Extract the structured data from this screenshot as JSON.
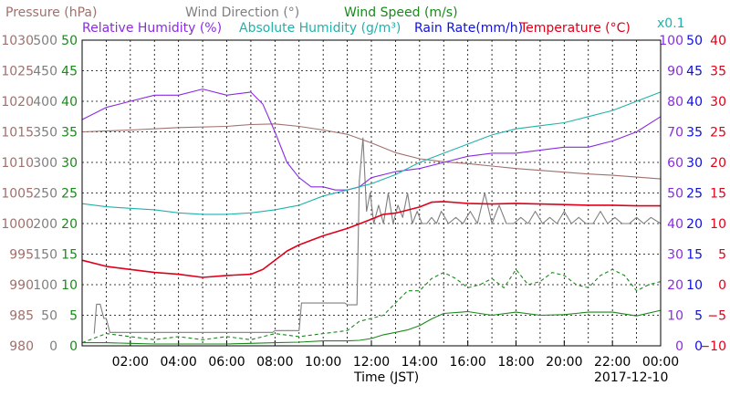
{
  "chart_data": {
    "type": "line",
    "date_label": "2017-12-10",
    "xlabel": "Time (JST)",
    "x_ticks": [
      "02:00",
      "04:00",
      "06:00",
      "08:00",
      "10:00",
      "12:00",
      "14:00",
      "16:00",
      "18:00",
      "20:00",
      "22:00",
      "00:00"
    ],
    "xlim_hours": [
      0,
      24
    ],
    "header_labels": {
      "pressure": "Pressure (hPa)",
      "wind_direction": "Wind Direction (°)",
      "wind_speed": "Wind Speed (m/s)",
      "relative_humidity": "Relative Humidity (%)",
      "absolute_humidity": "Absolute Humidity (g/m³)",
      "absolute_humidity_scale": "x0.1",
      "rain_rate": "Rain Rate(mm/h)",
      "temperature": "Temperature (°C)"
    },
    "axes": {
      "pressure": {
        "ticks": [
          "980",
          "985",
          "990",
          "995",
          "1000",
          "1005",
          "1010",
          "1015",
          "1020",
          "1025",
          "1030"
        ],
        "range": [
          980,
          1030
        ],
        "color": "#a0706c"
      },
      "wind_direction": {
        "ticks": [
          "0",
          "50",
          "100",
          "150",
          "200",
          "250",
          "300",
          "350",
          "400",
          "450",
          "500"
        ],
        "range": [
          0,
          500
        ],
        "color": "#7f7f7f"
      },
      "wind_speed": {
        "ticks": [
          "0",
          "5",
          "10",
          "15",
          "20",
          "25",
          "30",
          "35",
          "40",
          "45",
          "50"
        ],
        "range": [
          0,
          50
        ],
        "color": "#1a8a1a"
      },
      "humidity": {
        "ticks": [
          "0",
          "10",
          "20",
          "30",
          "40",
          "50",
          "60",
          "70",
          "80",
          "90",
          "100"
        ],
        "range": [
          0,
          100
        ],
        "color": "#8a2be2"
      },
      "rain_rate": {
        "ticks": [
          "0",
          "5",
          "10",
          "15",
          "20",
          "25",
          "30",
          "35",
          "40",
          "45",
          "50"
        ],
        "range": [
          0,
          50
        ],
        "color": "#1010e0"
      },
      "temperature": {
        "ticks": [
          "−10",
          "−5",
          "0",
          "5",
          "10",
          "15",
          "20",
          "25",
          "30",
          "35",
          "40"
        ],
        "range": [
          -10,
          40
        ],
        "color": "#e0001a"
      }
    },
    "series": [
      {
        "key": "pressure",
        "color": "#a0706c",
        "axis": "pressure",
        "x": [
          0,
          2,
          4,
          6,
          7,
          8,
          9,
          10,
          11,
          12,
          13,
          14,
          15,
          16,
          17,
          18,
          19,
          20,
          21,
          22,
          23,
          24
        ],
        "y": [
          1015,
          1015.3,
          1015.7,
          1015.9,
          1016.2,
          1016.3,
          1015.9,
          1015.3,
          1014.6,
          1013.2,
          1011.6,
          1010.6,
          1010.1,
          1009.8,
          1009.4,
          1009.0,
          1008.7,
          1008.4,
          1008.1,
          1007.9,
          1007.6,
          1007.3
        ]
      },
      {
        "key": "wind_direction",
        "color": "#7f7f7f",
        "axis": "wind_direction",
        "x": [
          0.5,
          0.6,
          0.75,
          0.9,
          1.0,
          1.15,
          7.9,
          8.0,
          9.0,
          9.1,
          10.9,
          11.0,
          11.4,
          11.5,
          11.65,
          11.8,
          11.95,
          12.1,
          12.3,
          12.5,
          12.7,
          12.9,
          13.1,
          13.3,
          13.5,
          13.7,
          13.9,
          14.1,
          14.3,
          14.5,
          14.7,
          14.9,
          15.2,
          15.5,
          15.8,
          16.1,
          16.4,
          16.7,
          17.0,
          17.3,
          17.6,
          17.9,
          18.2,
          18.5,
          18.8,
          19.1,
          19.4,
          19.7,
          20.0,
          20.3,
          20.6,
          20.9,
          21.2,
          21.5,
          21.8,
          22.1,
          22.4,
          22.7,
          23.0,
          23.3,
          23.6,
          24.0
        ],
        "y": [
          20,
          68,
          68,
          45,
          45,
          22,
          22,
          25,
          25,
          70,
          70,
          67,
          67,
          270,
          340,
          220,
          250,
          200,
          230,
          200,
          250,
          200,
          230,
          210,
          250,
          200,
          220,
          200,
          200,
          210,
          200,
          220,
          200,
          210,
          200,
          220,
          200,
          250,
          200,
          230,
          200,
          200,
          210,
          200,
          220,
          200,
          210,
          200,
          220,
          200,
          210,
          200,
          200,
          220,
          200,
          210,
          200,
          200,
          210,
          200,
          210,
          200
        ]
      },
      {
        "key": "wind_speed",
        "color": "#1a8a1a",
        "axis": "wind_speed",
        "x": [
          0,
          1,
          2,
          3,
          4,
          5,
          6,
          7,
          8,
          9,
          10,
          11,
          11.5,
          12,
          12.5,
          13,
          13.5,
          14,
          14.5,
          15,
          16,
          17,
          18,
          19,
          20,
          21,
          22,
          23,
          24
        ],
        "y": [
          0.5,
          0.5,
          0.4,
          0.3,
          0.3,
          0.3,
          0.3,
          0.4,
          0.5,
          0.6,
          0.8,
          0.8,
          0.9,
          1.2,
          1.8,
          2.2,
          2.6,
          3.3,
          4.4,
          5.3,
          5.6,
          5.0,
          5.5,
          5.0,
          5.1,
          5.5,
          5.5,
          4.9,
          5.8
        ]
      },
      {
        "key": "wind_speed_gust",
        "color": "#1a8a1a",
        "axis": "wind_speed",
        "dashed": true,
        "x": [
          0,
          1,
          2,
          3,
          4,
          5,
          6,
          7,
          8,
          9,
          10,
          11,
          11.5,
          12,
          12.5,
          13,
          13.5,
          14,
          14.5,
          15,
          15.5,
          16,
          16.5,
          17,
          17.5,
          18,
          18.5,
          19,
          19.5,
          20,
          20.5,
          21,
          21.5,
          22,
          22.5,
          23,
          23.5,
          24
        ],
        "y": [
          0.5,
          2,
          1.5,
          1,
          1.5,
          1,
          1.5,
          1,
          2,
          1.5,
          2,
          2.5,
          4,
          4.5,
          5,
          7,
          9,
          9,
          11,
          12,
          11,
          9.5,
          10,
          11,
          9.5,
          12.5,
          10,
          10.5,
          12,
          11.5,
          10,
          9.5,
          11.5,
          12.5,
          11.5,
          9,
          10,
          10.5
        ]
      },
      {
        "key": "relative_humidity",
        "color": "#8a2be2",
        "axis": "humidity",
        "x": [
          0,
          1,
          2,
          3,
          4,
          5,
          6,
          7,
          7.5,
          8,
          8.5,
          9,
          9.5,
          10,
          10.5,
          11,
          11.5,
          12,
          13,
          14,
          15,
          16,
          17,
          18,
          19,
          20,
          21,
          22,
          23,
          24
        ],
        "y": [
          74,
          78,
          80,
          82,
          82,
          84,
          82,
          83,
          79,
          70,
          60,
          55,
          52,
          52,
          51,
          51,
          52,
          55,
          57,
          58,
          60,
          62,
          63,
          63,
          64,
          65,
          65,
          67,
          70,
          75
        ]
      },
      {
        "key": "absolute_humidity",
        "color": "#20b2aa",
        "axis": "humidity",
        "x": [
          0,
          1,
          2,
          3,
          4,
          5,
          6,
          7,
          8,
          9,
          10,
          11,
          12,
          13,
          14,
          15,
          16,
          17,
          18,
          19,
          20,
          21,
          22,
          23,
          24
        ],
        "y": [
          46.5,
          45.5,
          45,
          44.5,
          43.5,
          43,
          43,
          43.5,
          44.5,
          46,
          49,
          51,
          53,
          56,
          60,
          63,
          66,
          69,
          71,
          72,
          73,
          75,
          77,
          80,
          83
        ]
      },
      {
        "key": "rain_rate",
        "color": "#1010e0",
        "axis": "rain_rate",
        "x": [
          0,
          24
        ],
        "y": [
          0,
          0
        ]
      },
      {
        "key": "temperature",
        "color": "#e0001a",
        "axis": "temperature",
        "x": [
          0,
          1,
          2,
          3,
          4,
          5,
          6,
          7,
          7.5,
          8,
          8.5,
          9,
          10,
          11,
          12,
          12.5,
          13,
          14,
          14.5,
          15,
          16,
          17,
          18,
          19,
          20,
          21,
          22,
          23,
          24
        ],
        "y": [
          4,
          3,
          2.5,
          2,
          1.7,
          1.2,
          1.5,
          1.7,
          2.5,
          4,
          5.5,
          6.5,
          8,
          9.2,
          10.7,
          11.5,
          11.7,
          12.7,
          13.5,
          13.6,
          13.3,
          13.2,
          13.3,
          13.2,
          13.1,
          13.0,
          13.0,
          12.9,
          12.9
        ]
      }
    ]
  }
}
